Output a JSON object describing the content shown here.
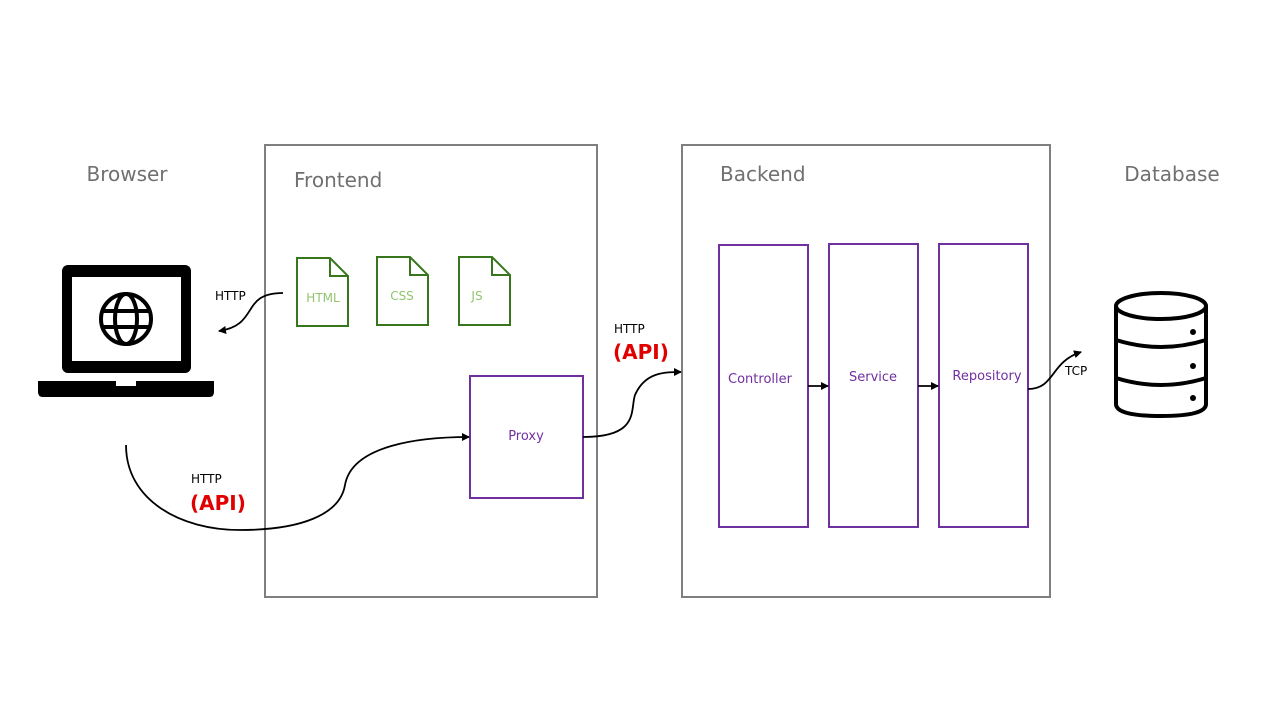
{
  "nodes": {
    "browser": "Browser",
    "frontend": {
      "title": "Frontend",
      "files": [
        "HTML",
        "CSS",
        "JS"
      ],
      "proxy": "Proxy"
    },
    "backend": {
      "title": "Backend",
      "components": [
        "Controller",
        "Service",
        "Repository"
      ]
    },
    "database": "Database"
  },
  "edges": [
    {
      "protocol": "HTTP"
    },
    {
      "protocol": "HTTP",
      "note": "(API)"
    },
    {
      "protocol": "HTTP",
      "note": "(API)"
    },
    {
      "protocol": "TCP"
    }
  ]
}
